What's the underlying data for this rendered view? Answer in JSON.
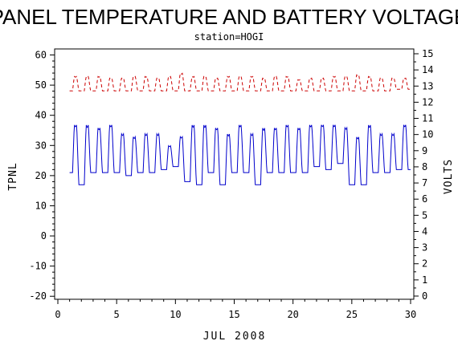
{
  "chart_data": {
    "type": "line",
    "title": "PANEL TEMPERATURE AND BATTERY VOLTAGE",
    "subtitle": "station=HOGI",
    "xlabel": "JUL 2008",
    "ylabel_left": "TPNL",
    "ylabel_right": "VOLTS",
    "xlim": [
      0,
      30
    ],
    "ylim_left": [
      -21,
      62
    ],
    "ylim_right": [
      0,
      15
    ],
    "x_ticks": [
      "0",
      "5",
      "10",
      "15",
      "20",
      "25",
      "30"
    ],
    "y_left_ticks": [
      "-20",
      "-10",
      "0",
      "10",
      "20",
      "30",
      "40",
      "50",
      "60"
    ],
    "y_right_ticks": [
      "0",
      "1",
      "2",
      "3",
      "4",
      "5",
      "6",
      "7",
      "8",
      "9",
      "10",
      "11",
      "12",
      "13",
      "14",
      "15"
    ],
    "grid": false,
    "colors": {
      "temperature": "#0000cc",
      "voltage": "#cc0000"
    },
    "series": [
      {
        "axis": "left",
        "style": "solid",
        "daily_min": [
          21,
          17,
          21,
          21,
          21,
          20,
          21,
          21,
          22,
          23,
          18,
          17,
          21,
          17,
          21,
          21,
          17,
          21,
          21,
          21,
          21,
          23,
          22,
          24,
          17,
          17,
          21,
          21,
          22
        ],
        "daily_max": [
          37,
          37,
          36,
          37,
          34,
          33,
          34,
          34,
          30,
          33,
          37,
          37,
          36,
          34,
          37,
          34,
          36,
          36,
          37,
          36,
          37,
          37,
          37,
          36,
          33,
          37,
          34,
          34,
          37
        ]
      },
      {
        "axis": "right",
        "style": "dashed",
        "daily_min": [
          12.7,
          12.7,
          12.7,
          12.7,
          12.7,
          12.7,
          12.7,
          12.7,
          12.7,
          12.7,
          12.7,
          12.7,
          12.7,
          12.7,
          12.7,
          12.7,
          12.7,
          12.7,
          12.7,
          12.7,
          12.7,
          12.7,
          12.7,
          12.7,
          12.7,
          12.7,
          12.7,
          12.7,
          12.8
        ],
        "daily_max": [
          13.6,
          13.6,
          13.6,
          13.5,
          13.5,
          13.6,
          13.6,
          13.5,
          13.6,
          13.8,
          13.6,
          13.6,
          13.5,
          13.6,
          13.6,
          13.6,
          13.5,
          13.6,
          13.6,
          13.4,
          13.5,
          13.5,
          13.6,
          13.6,
          13.7,
          13.6,
          13.5,
          13.5,
          13.5
        ]
      }
    ]
  }
}
